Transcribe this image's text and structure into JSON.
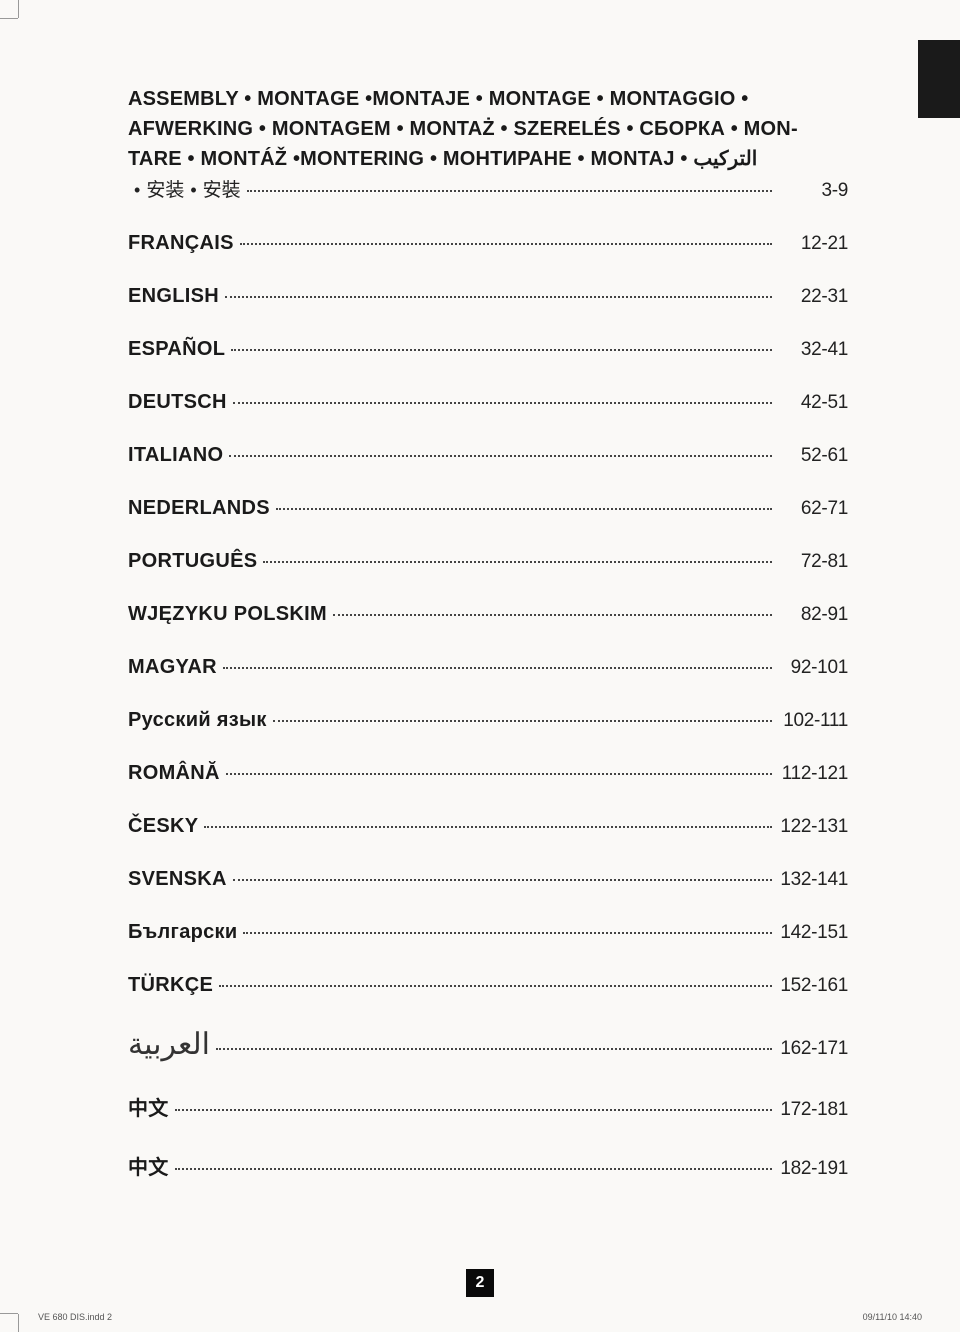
{
  "heading_lines": [
    "ASSEMBLY • MONTAGE •MONTAJE • MONTAGE • MONTAGGIO •",
    "AFWERKING • MONTAGEM • MONTAŻ • SZERELÉS • СБОРКА • MON-",
    "TARE • MONTÁŽ •MONTERING • МОНТИРАНЕ • MONTAJ • التركيب"
  ],
  "sub_cjk_1": "安装",
  "sub_cjk_2": "安裝",
  "sub_bullet": "•",
  "heading_pages": "3-9",
  "entries": [
    {
      "lang": "FRANÇAIS",
      "pages": "12-21",
      "style": ""
    },
    {
      "lang": "ENGLISH",
      "pages": "22-31",
      "style": ""
    },
    {
      "lang": "ESPAÑOL",
      "pages": "32-41",
      "style": ""
    },
    {
      "lang": "DEUTSCH",
      "pages": "42-51",
      "style": ""
    },
    {
      "lang": "ITALIANO",
      "pages": "52-61",
      "style": ""
    },
    {
      "lang": "NEDERLANDS",
      "pages": "62-71",
      "style": ""
    },
    {
      "lang": "PORTUGUÊS",
      "pages": "72-81",
      "style": ""
    },
    {
      "lang": "WJĘZYKU POLSKIM",
      "pages": "82-91",
      "style": ""
    },
    {
      "lang": "MAGYAR",
      "pages": "92-101",
      "style": ""
    },
    {
      "lang": "Русский язык",
      "pages": "102-111",
      "style": ""
    },
    {
      "lang": "ROMÂNĂ",
      "pages": "112-121",
      "style": ""
    },
    {
      "lang": "ČESKY",
      "pages": "122-131",
      "style": ""
    },
    {
      "lang": "SVENSKA",
      "pages": "132-141",
      "style": ""
    },
    {
      "lang": "Български",
      "pages": "142-151",
      "style": ""
    },
    {
      "lang": "TÜRKÇE",
      "pages": "152-161",
      "style": ""
    },
    {
      "lang": "العربية",
      "pages": "162-171",
      "style": "arabic"
    },
    {
      "lang": "中文",
      "pages": "172-181",
      "style": "cjk"
    },
    {
      "lang": "中文",
      "pages": "182-191",
      "style": "cjk"
    }
  ],
  "page_number": "2",
  "footer_left": "VE 680 DIS.indd   2",
  "footer_right": "09/11/10   14:40"
}
